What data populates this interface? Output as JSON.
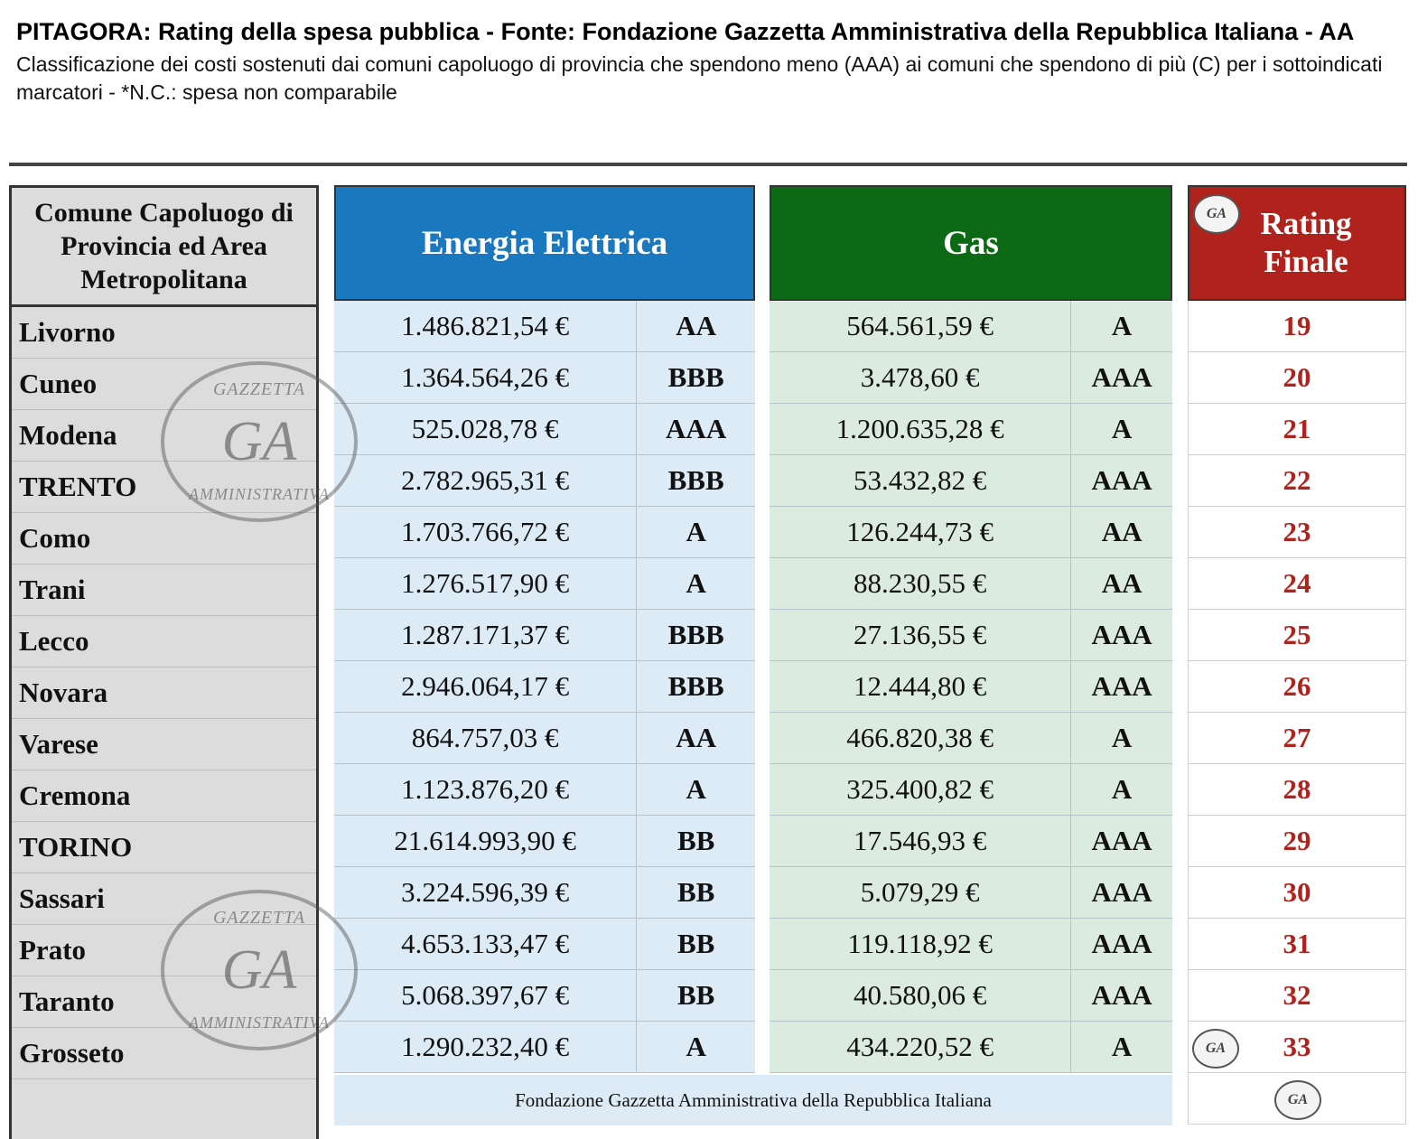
{
  "header": {
    "title": "PITAGORA: Rating della spesa pubblica - Fonte: Fondazione Gazzetta Amministrativa della Repubblica Italiana - AA",
    "subtitle": "Classificazione dei costi sostenuti dai comuni capoluogo di provincia che spendono meno (AAA) ai comuni che spendono di più (C) per i sottoindicati marcatori - *N.C.: spesa non comparabile"
  },
  "table": {
    "city_header": "Comune Capoluogo di Provincia ed Area Metropolitana",
    "electric_header": "Energia Elettrica",
    "gas_header": "Gas",
    "rating_header": "Rating Finale",
    "footer": "Fondazione Gazzetta Amministrativa della Repubblica Italiana",
    "rows": [
      {
        "city": "Livorno",
        "elec_amount": "1.486.821,54 €",
        "elec_rating": "AA",
        "gas_amount": "564.561,59 €",
        "gas_rating": "A",
        "final": "19"
      },
      {
        "city": "Cuneo",
        "elec_amount": "1.364.564,26 €",
        "elec_rating": "BBB",
        "gas_amount": "3.478,60 €",
        "gas_rating": "AAA",
        "final": "20"
      },
      {
        "city": "Modena",
        "elec_amount": "525.028,78 €",
        "elec_rating": "AAA",
        "gas_amount": "1.200.635,28 €",
        "gas_rating": "A",
        "final": "21"
      },
      {
        "city": "TRENTO",
        "elec_amount": "2.782.965,31 €",
        "elec_rating": "BBB",
        "gas_amount": "53.432,82 €",
        "gas_rating": "AAA",
        "final": "22"
      },
      {
        "city": "Como",
        "elec_amount": "1.703.766,72 €",
        "elec_rating": "A",
        "gas_amount": "126.244,73 €",
        "gas_rating": "AA",
        "final": "23"
      },
      {
        "city": "Trani",
        "elec_amount": "1.276.517,90 €",
        "elec_rating": "A",
        "gas_amount": "88.230,55 €",
        "gas_rating": "AA",
        "final": "24"
      },
      {
        "city": "Lecco",
        "elec_amount": "1.287.171,37 €",
        "elec_rating": "BBB",
        "gas_amount": "27.136,55 €",
        "gas_rating": "AAA",
        "final": "25"
      },
      {
        "city": "Novara",
        "elec_amount": "2.946.064,17 €",
        "elec_rating": "BBB",
        "gas_amount": "12.444,80 €",
        "gas_rating": "AAA",
        "final": "26"
      },
      {
        "city": "Varese",
        "elec_amount": "864.757,03 €",
        "elec_rating": "AA",
        "gas_amount": "466.820,38 €",
        "gas_rating": "A",
        "final": "27"
      },
      {
        "city": "Cremona",
        "elec_amount": "1.123.876,20 €",
        "elec_rating": "A",
        "gas_amount": "325.400,82 €",
        "gas_rating": "A",
        "final": "28"
      },
      {
        "city": "TORINO",
        "elec_amount": "21.614.993,90 €",
        "elec_rating": "BB",
        "gas_amount": "17.546,93 €",
        "gas_rating": "AAA",
        "final": "29"
      },
      {
        "city": "Sassari",
        "elec_amount": "3.224.596,39 €",
        "elec_rating": "BB",
        "gas_amount": "5.079,29 €",
        "gas_rating": "AAA",
        "final": "30"
      },
      {
        "city": "Prato",
        "elec_amount": "4.653.133,47 €",
        "elec_rating": "BB",
        "gas_amount": "119.118,92 €",
        "gas_rating": "AAA",
        "final": "31"
      },
      {
        "city": "Taranto",
        "elec_amount": "5.068.397,67 €",
        "elec_rating": "BB",
        "gas_amount": "40.580,06 €",
        "gas_rating": "AAA",
        "final": "32"
      },
      {
        "city": "Grosseto",
        "elec_amount": "1.290.232,40 €",
        "elec_rating": "A",
        "gas_amount": "434.220,52 €",
        "gas_rating": "A",
        "final": "33"
      }
    ]
  },
  "seal": {
    "text": "GA"
  },
  "watermark": {
    "top": "GAZZETTA",
    "center": "GA",
    "bottom": "AMMINISTRATIVA"
  },
  "colors": {
    "electric": "#1a78be",
    "gas": "#0d6a14",
    "rating": "#b0231c"
  }
}
